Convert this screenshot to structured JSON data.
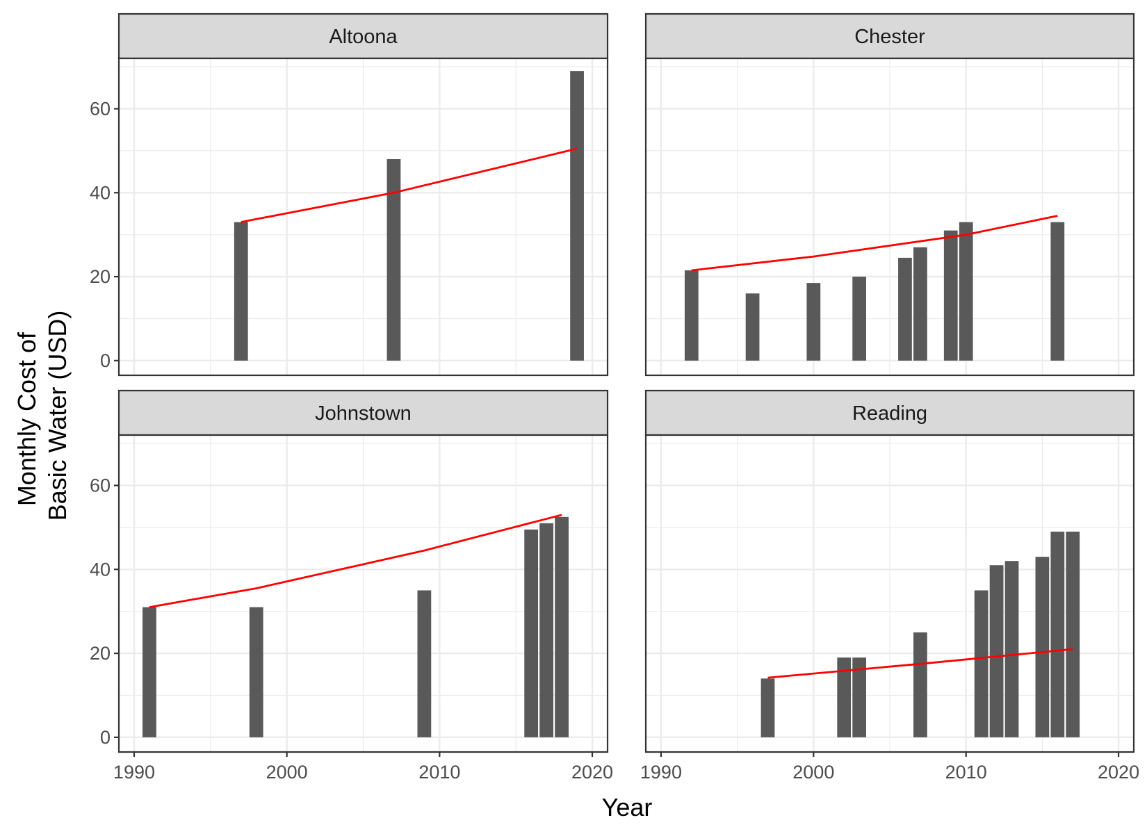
{
  "chart_data": {
    "type": "bar",
    "title": "",
    "xlabel": "Year",
    "ylabel_lines": [
      "Monthly Cost of",
      "Basic Water (USD)"
    ],
    "xlim": [
      1989,
      2021
    ],
    "ylim": [
      -3.5,
      72
    ],
    "x_ticks": [
      1990,
      2000,
      2010,
      2020
    ],
    "y_ticks": [
      0,
      20,
      40,
      60
    ],
    "grid": true,
    "bar_color": "#595959",
    "trend_color": "#ff0000",
    "strip_color": "#d9d9d9",
    "panels": [
      {
        "name": "Altoona",
        "bars": [
          {
            "x": 1997,
            "y": 33
          },
          {
            "x": 2007,
            "y": 48
          },
          {
            "x": 2019,
            "y": 69
          }
        ],
        "trend": [
          [
            1997,
            33
          ],
          [
            2007,
            40
          ],
          [
            2019,
            50.5
          ]
        ]
      },
      {
        "name": "Chester",
        "bars": [
          {
            "x": 1992,
            "y": 21.5
          },
          {
            "x": 1996,
            "y": 16
          },
          {
            "x": 2000,
            "y": 18.5
          },
          {
            "x": 2003,
            "y": 20
          },
          {
            "x": 2006,
            "y": 24.5
          },
          {
            "x": 2007,
            "y": 27
          },
          {
            "x": 2009,
            "y": 31
          },
          {
            "x": 2010,
            "y": 33
          },
          {
            "x": 2016,
            "y": 33
          }
        ],
        "trend": [
          [
            1992,
            21.5
          ],
          [
            2000,
            24.8
          ],
          [
            2010,
            30
          ],
          [
            2016,
            34.5
          ]
        ]
      },
      {
        "name": "Johnstown",
        "bars": [
          {
            "x": 1991,
            "y": 31
          },
          {
            "x": 1998,
            "y": 31
          },
          {
            "x": 2009,
            "y": 35
          },
          {
            "x": 2016,
            "y": 49.5
          },
          {
            "x": 2017,
            "y": 51
          },
          {
            "x": 2018,
            "y": 52.5
          }
        ],
        "trend": [
          [
            1991,
            31
          ],
          [
            1998,
            35.5
          ],
          [
            2009,
            44.5
          ],
          [
            2018,
            53
          ]
        ]
      },
      {
        "name": "Reading",
        "bars": [
          {
            "x": 1997,
            "y": 14
          },
          {
            "x": 2002,
            "y": 19
          },
          {
            "x": 2003,
            "y": 19
          },
          {
            "x": 2007,
            "y": 25
          },
          {
            "x": 2011,
            "y": 35
          },
          {
            "x": 2012,
            "y": 41
          },
          {
            "x": 2013,
            "y": 42
          },
          {
            "x": 2015,
            "y": 43
          },
          {
            "x": 2016,
            "y": 49
          },
          {
            "x": 2017,
            "y": 49
          }
        ],
        "trend": [
          [
            1997,
            14.2
          ],
          [
            2007,
            17.5
          ],
          [
            2017,
            21
          ]
        ]
      }
    ]
  }
}
